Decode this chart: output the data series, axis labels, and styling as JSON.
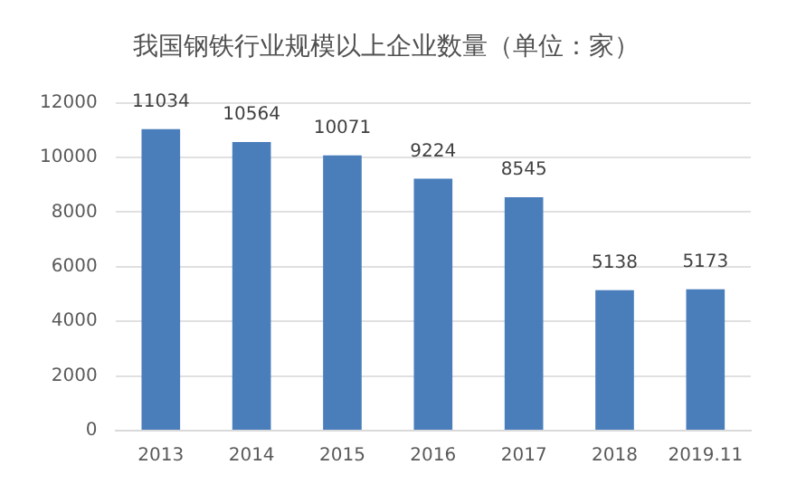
{
  "chart_data": {
    "type": "bar",
    "title": "我国钢铁行业规模以上企业数量（单位：家）",
    "categories": [
      "2013",
      "2014",
      "2015",
      "2016",
      "2017",
      "2018",
      "2019.11"
    ],
    "values": [
      11034,
      10564,
      10071,
      9224,
      8545,
      5138,
      5173
    ],
    "color": "#4a7ebb",
    "ylim": [
      0,
      12000
    ],
    "yticks": [
      0,
      2000,
      4000,
      6000,
      8000,
      10000,
      12000
    ],
    "grid": "y",
    "data_labels": true,
    "legend": false
  }
}
